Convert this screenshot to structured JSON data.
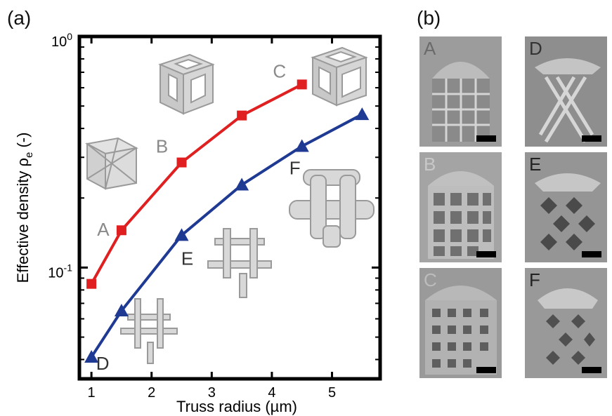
{
  "panels": {
    "a_label": "(a)",
    "b_label": "(b)"
  },
  "chart_data": {
    "type": "line",
    "xlabel": "Truss radius (µm)",
    "ylabel": "Effective density ρ",
    "ylabel_sub": "e",
    "ylabel_suffix": " (-)",
    "xlim": [
      0.8,
      5.8
    ],
    "ylim": [
      0.033,
      1.0
    ],
    "yscale": "log",
    "grid": false,
    "x_ticks": [
      1,
      2,
      3,
      4,
      5
    ],
    "y_ticks": [
      {
        "value": 1.0,
        "base": "10",
        "exp": "0"
      },
      {
        "value": 0.1,
        "base": "10",
        "exp": "-1"
      }
    ],
    "series": [
      {
        "color": "#e02020",
        "marker": "square",
        "x": [
          1,
          1.5,
          2.5,
          3.5,
          4.5
        ],
        "y": [
          0.085,
          0.145,
          0.285,
          0.455,
          0.62
        ]
      },
      {
        "color": "#1f3a93",
        "marker": "triangle",
        "x": [
          1,
          1.5,
          2.5,
          3.5,
          4.5,
          5.5
        ],
        "y": [
          0.041,
          0.065,
          0.138,
          0.228,
          0.335,
          0.46
        ]
      }
    ],
    "annotations": [
      {
        "text": "A",
        "color": "#8a8a8a"
      },
      {
        "text": "B",
        "color": "#8a8a8a"
      },
      {
        "text": "C",
        "color": "#8a8a8a"
      },
      {
        "text": "D",
        "color": "#333333"
      },
      {
        "text": "E",
        "color": "#333333"
      },
      {
        "text": "F",
        "color": "#333333"
      }
    ]
  },
  "photos": [
    {
      "letter": "A",
      "style": "cubic-x"
    },
    {
      "letter": "D",
      "style": "woodpile"
    },
    {
      "letter": "B",
      "style": "cubic-square"
    },
    {
      "letter": "E",
      "style": "woodpile"
    },
    {
      "letter": "C",
      "style": "cubic-holes"
    },
    {
      "letter": "F",
      "style": "woodpile-thick"
    }
  ]
}
